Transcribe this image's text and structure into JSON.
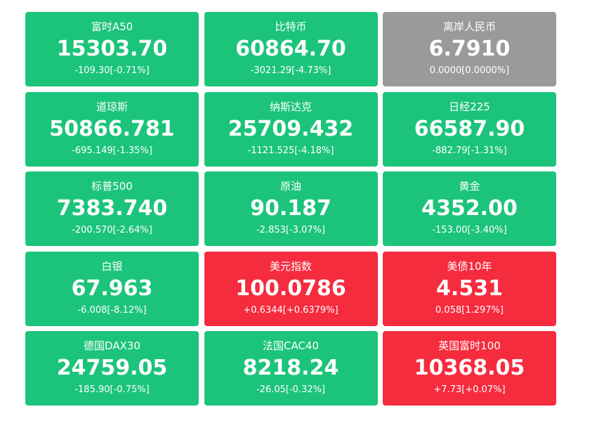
{
  "colors": {
    "down": "#1cc47b",
    "up": "#f52b3e",
    "flat": "#9a9a9a"
  },
  "tiles": [
    {
      "name": "富时A50",
      "price": "15303.70",
      "change": "-109.30[-0.71%]",
      "trend": "down"
    },
    {
      "name": "比特币",
      "price": "60864.70",
      "change": "-3021.29[-4.73%]",
      "trend": "down"
    },
    {
      "name": "离岸人民币",
      "price": "6.7910",
      "change": "0.0000[0.0000%]",
      "trend": "flat"
    },
    {
      "name": "道琼斯",
      "price": "50866.781",
      "change": "-695.149[-1.35%]",
      "trend": "down"
    },
    {
      "name": "纳斯达克",
      "price": "25709.432",
      "change": "-1121.525[-4.18%]",
      "trend": "down"
    },
    {
      "name": "日经225",
      "price": "66587.90",
      "change": "-882.79[-1.31%]",
      "trend": "down"
    },
    {
      "name": "标普500",
      "price": "7383.740",
      "change": "-200.570[-2.64%]",
      "trend": "down"
    },
    {
      "name": "原油",
      "price": "90.187",
      "change": "-2.853[-3.07%]",
      "trend": "down"
    },
    {
      "name": "黄金",
      "price": "4352.00",
      "change": "-153.00[-3.40%]",
      "trend": "down"
    },
    {
      "name": "白银",
      "price": "67.963",
      "change": "-6.008[-8.12%]",
      "trend": "down"
    },
    {
      "name": "美元指数",
      "price": "100.0786",
      "change": "+0.6344[+0.6379%]",
      "trend": "up"
    },
    {
      "name": "美债10年",
      "price": "4.531",
      "change": "0.058[1.297%]",
      "trend": "up"
    },
    {
      "name": "德国DAX30",
      "price": "24759.05",
      "change": "-185.90[-0.75%]",
      "trend": "down"
    },
    {
      "name": "法国CAC40",
      "price": "8218.24",
      "change": "-26.05[-0.32%]",
      "trend": "down"
    },
    {
      "name": "英国富时100",
      "price": "10368.05",
      "change": "+7.73[+0.07%]",
      "trend": "up"
    }
  ]
}
